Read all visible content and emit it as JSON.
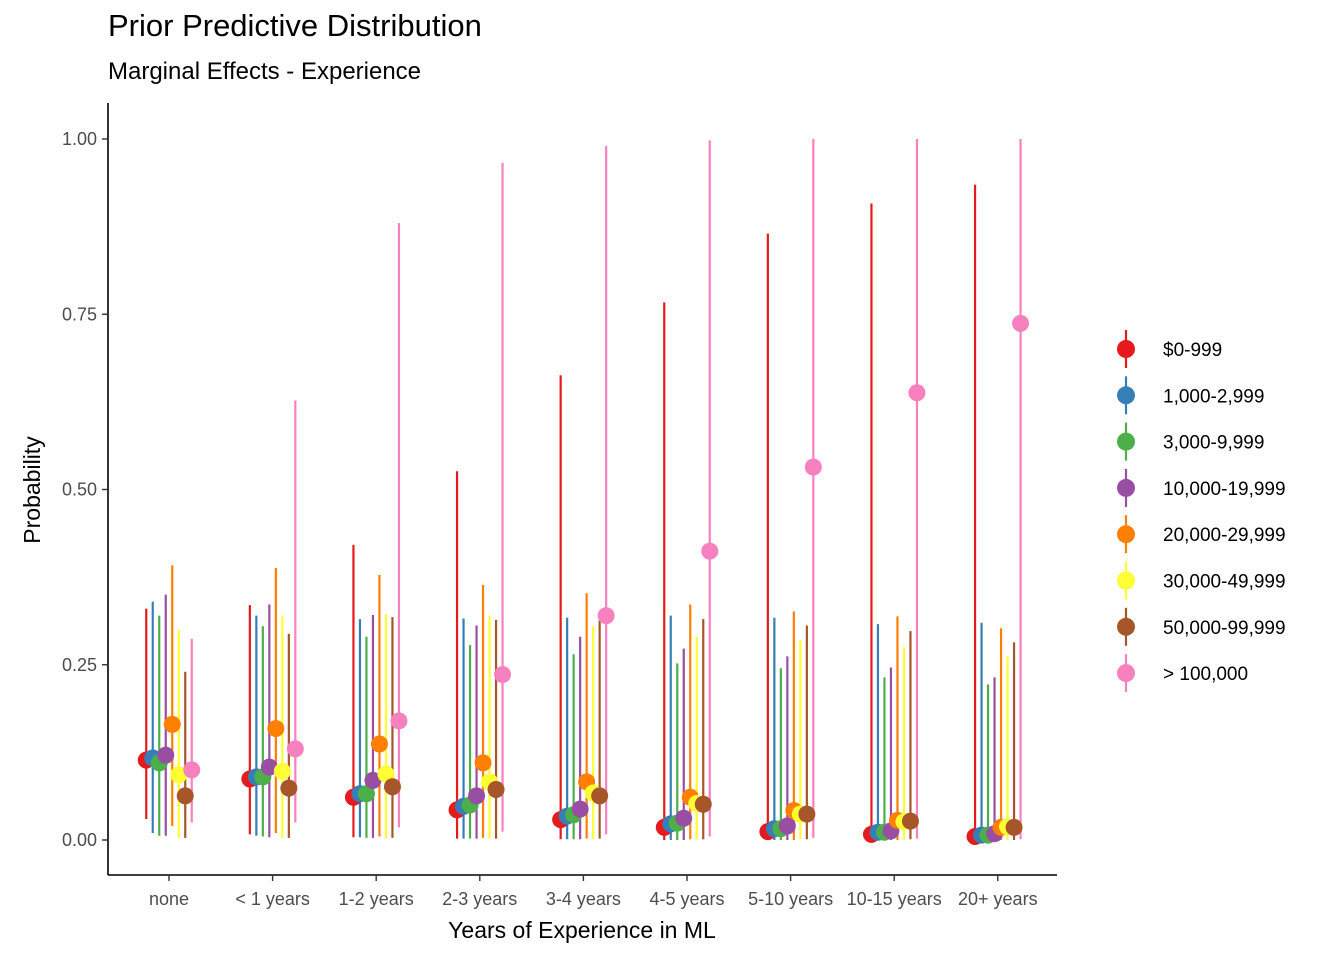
{
  "chart_data": {
    "type": "pointrange",
    "title": "Prior Predictive Distribution",
    "subtitle": "Marginal Effects - Experience",
    "xlabel": "Years of Experience in ML",
    "ylabel": "Probability",
    "ylim": [
      -0.05,
      1.05
    ],
    "yticks": [
      "0.00",
      "0.25",
      "0.50",
      "0.75",
      "1.00"
    ],
    "grid": false,
    "legend_position": "right",
    "categories": [
      "none",
      "< 1 years",
      "1-2 years",
      "2-3 years",
      "3-4 years",
      "4-5 years",
      "5-10 years",
      "10-15 years",
      "20+ years"
    ],
    "series": [
      {
        "name": "$0-999",
        "color": "#E41A1C",
        "values": [
          0.114,
          0.087,
          0.061,
          0.043,
          0.029,
          0.018,
          0.012,
          0.008,
          0.005
        ],
        "lower": [
          0.03,
          0.008,
          0.004,
          0.002,
          0.001,
          0.0,
          0.0,
          0.0,
          0.0
        ],
        "upper": [
          0.33,
          0.335,
          0.421,
          0.526,
          0.663,
          0.767,
          0.865,
          0.908,
          0.935
        ]
      },
      {
        "name": "1,000-2,999",
        "color": "#377EB8",
        "values": [
          0.117,
          0.09,
          0.066,
          0.048,
          0.034,
          0.023,
          0.016,
          0.011,
          0.007
        ],
        "lower": [
          0.01,
          0.006,
          0.004,
          0.002,
          0.001,
          0.0,
          0.0,
          0.0,
          0.0
        ],
        "upper": [
          0.34,
          0.32,
          0.315,
          0.316,
          0.317,
          0.32,
          0.317,
          0.308,
          0.31
        ]
      },
      {
        "name": "3,000-9,999",
        "color": "#4DAF4A",
        "values": [
          0.11,
          0.09,
          0.066,
          0.05,
          0.036,
          0.024,
          0.016,
          0.011,
          0.007
        ],
        "lower": [
          0.006,
          0.005,
          0.003,
          0.002,
          0.001,
          0.0,
          0.0,
          0.0,
          0.0
        ],
        "upper": [
          0.32,
          0.305,
          0.29,
          0.278,
          0.265,
          0.252,
          0.245,
          0.232,
          0.222
        ]
      },
      {
        "name": "10,000-19,999",
        "color": "#984EA3",
        "values": [
          0.121,
          0.104,
          0.085,
          0.063,
          0.044,
          0.031,
          0.02,
          0.013,
          0.009
        ],
        "lower": [
          0.006,
          0.004,
          0.003,
          0.002,
          0.001,
          0.0,
          0.0,
          0.0,
          0.0
        ],
        "upper": [
          0.35,
          0.336,
          0.321,
          0.306,
          0.29,
          0.273,
          0.262,
          0.246,
          0.232
        ]
      },
      {
        "name": "20,000-29,999",
        "color": "#FF7F00",
        "values": [
          0.165,
          0.159,
          0.137,
          0.11,
          0.083,
          0.061,
          0.042,
          0.028,
          0.018
        ],
        "lower": [
          0.02,
          0.01,
          0.005,
          0.003,
          0.002,
          0.001,
          0.0,
          0.0,
          0.0
        ],
        "upper": [
          0.392,
          0.388,
          0.378,
          0.364,
          0.352,
          0.336,
          0.326,
          0.319,
          0.302
        ]
      },
      {
        "name": "30,000-49,999",
        "color": "#FFFF33",
        "values": [
          0.093,
          0.098,
          0.094,
          0.083,
          0.067,
          0.052,
          0.037,
          0.026,
          0.019
        ],
        "lower": [
          0.003,
          0.003,
          0.002,
          0.002,
          0.001,
          0.001,
          0.001,
          0.0,
          0.0
        ],
        "upper": [
          0.3,
          0.32,
          0.322,
          0.32,
          0.305,
          0.29,
          0.285,
          0.275,
          0.262
        ]
      },
      {
        "name": "50,000-99,999",
        "color": "#A65628",
        "values": [
          0.063,
          0.074,
          0.076,
          0.072,
          0.063,
          0.051,
          0.037,
          0.027,
          0.018
        ],
        "lower": [
          0.003,
          0.003,
          0.003,
          0.002,
          0.002,
          0.001,
          0.001,
          0.001,
          0.0
        ],
        "upper": [
          0.24,
          0.294,
          0.318,
          0.314,
          0.313,
          0.315,
          0.306,
          0.298,
          0.282
        ]
      },
      {
        "name": "> 100,000",
        "color": "#F781BF",
        "values": [
          0.1,
          0.13,
          0.17,
          0.236,
          0.32,
          0.412,
          0.532,
          0.638,
          0.737
        ],
        "lower": [
          0.025,
          0.025,
          0.018,
          0.012,
          0.008,
          0.005,
          0.003,
          0.002,
          0.001
        ],
        "upper": [
          0.287,
          0.627,
          0.88,
          0.966,
          0.99,
          0.998,
          1.0,
          1.0,
          1.0
        ]
      }
    ]
  }
}
